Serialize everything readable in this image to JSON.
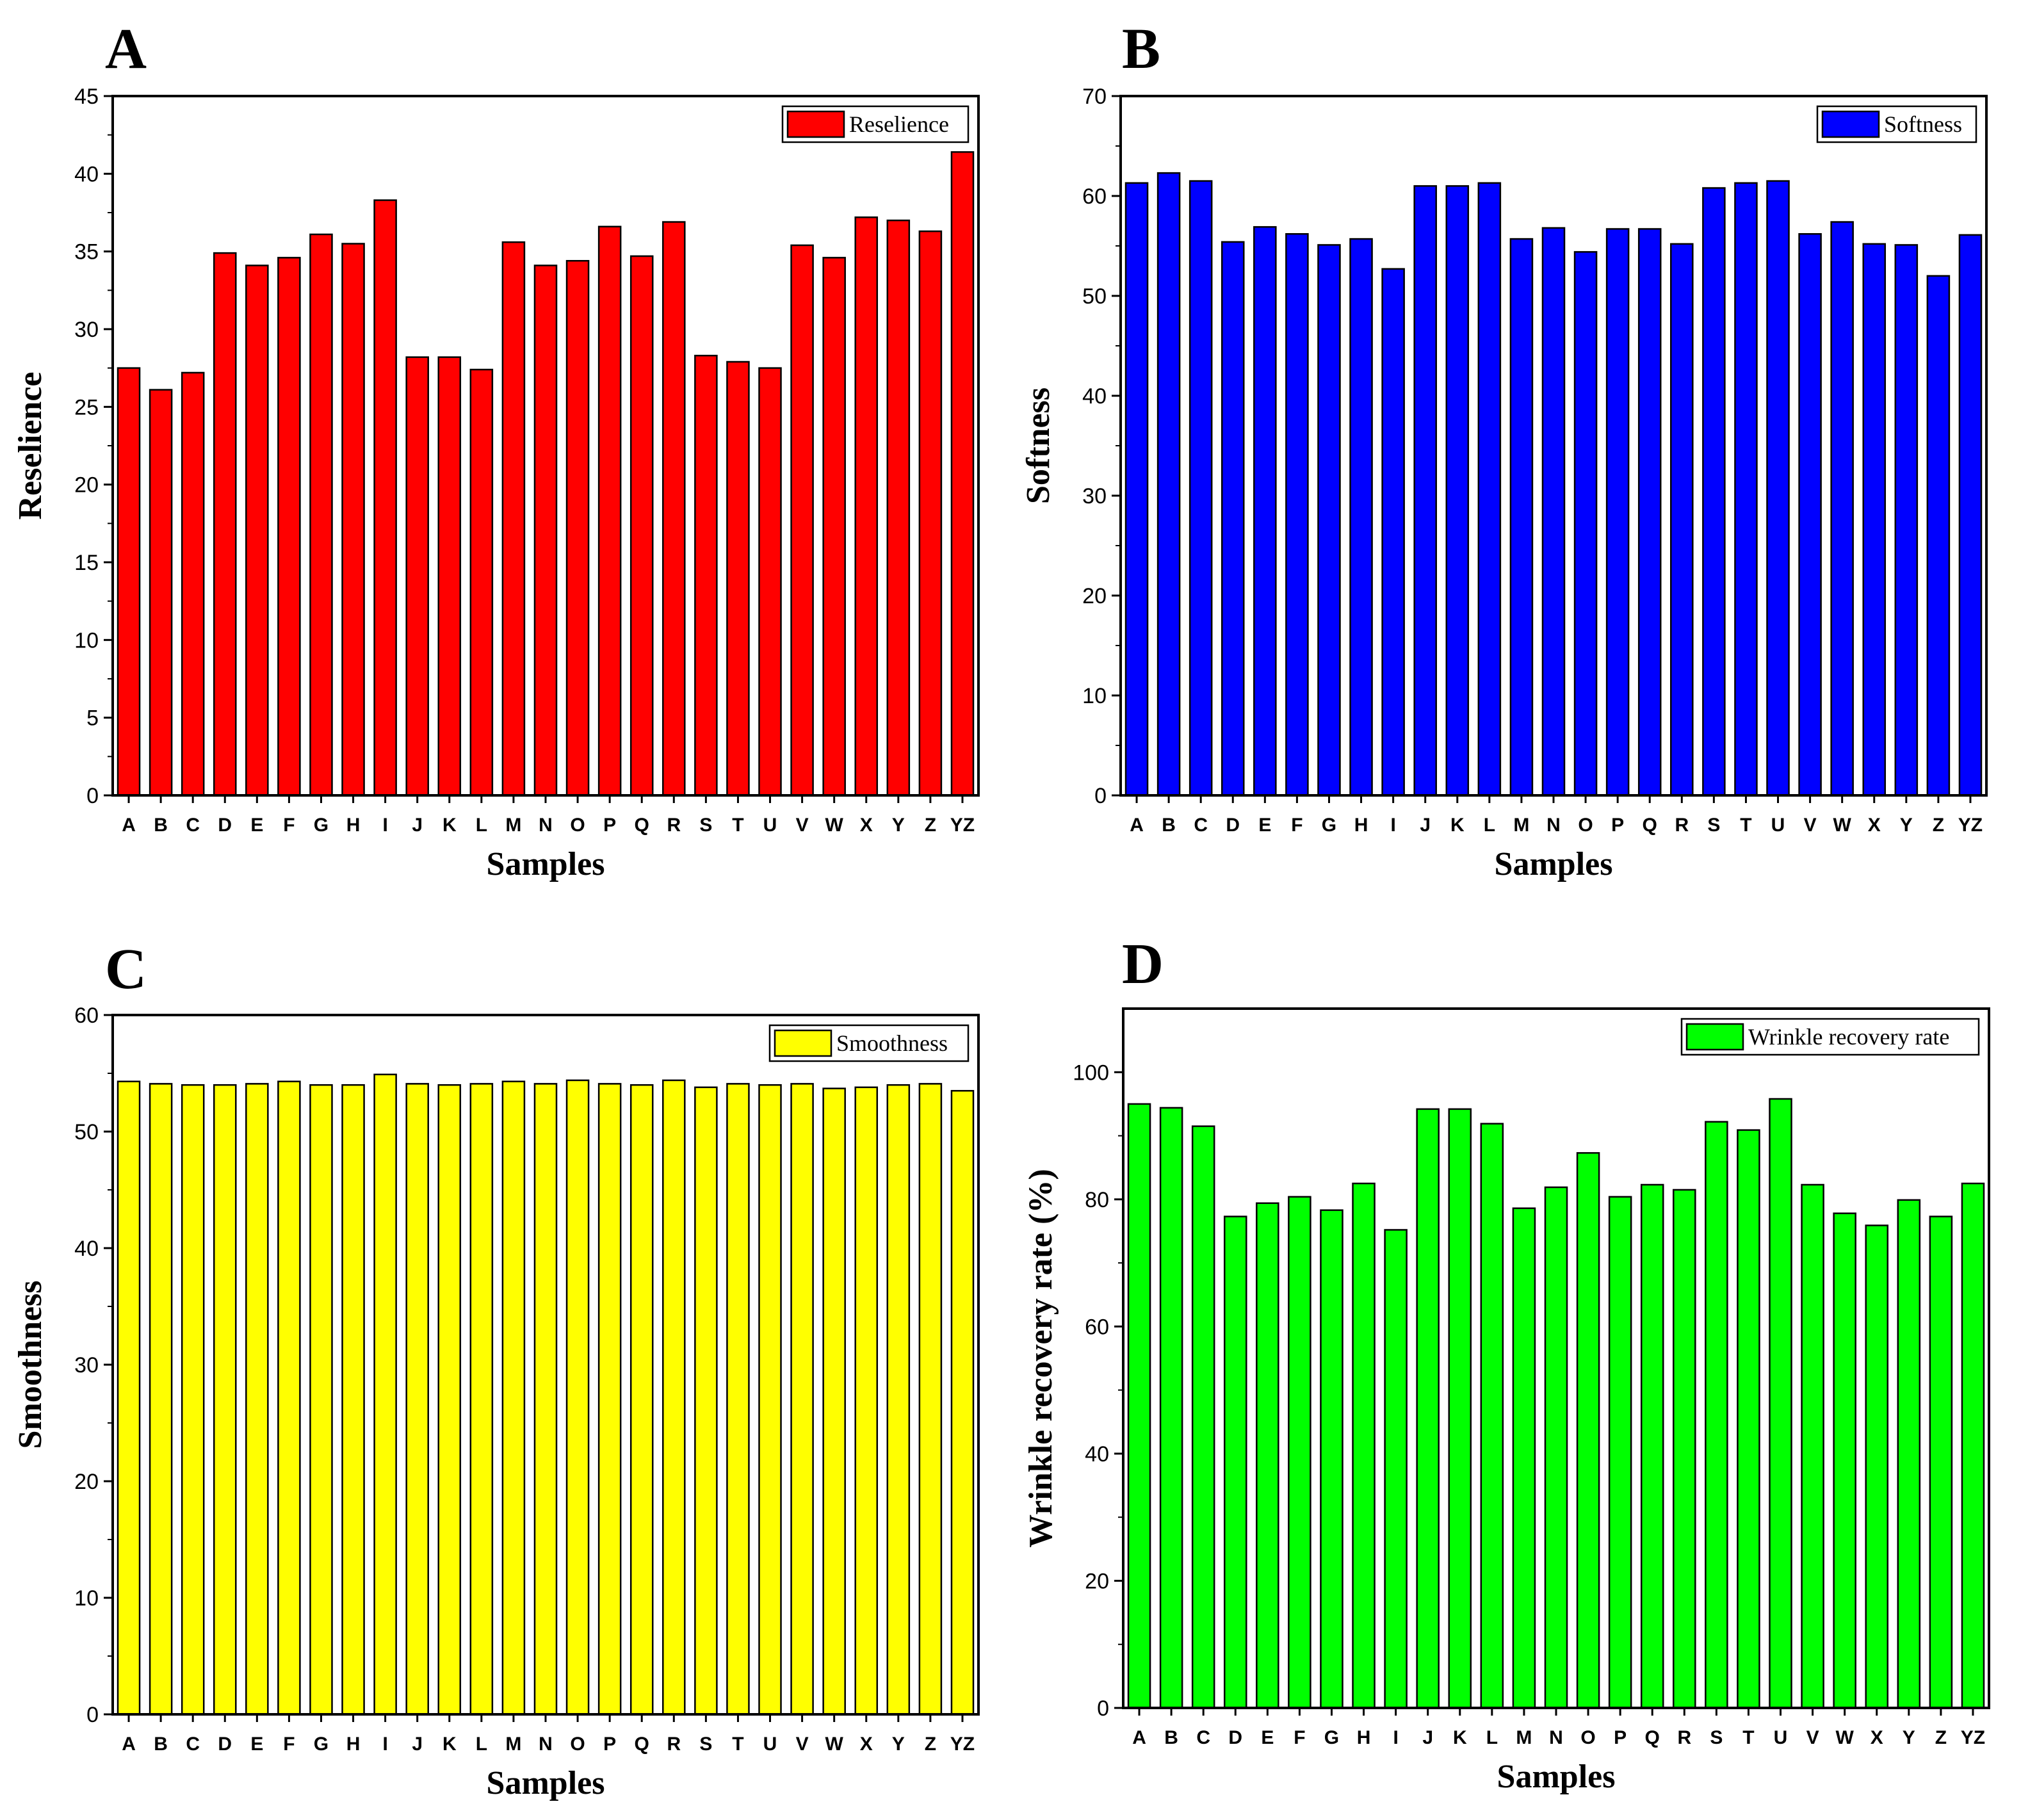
{
  "chart_data": [
    {
      "id": "A",
      "type": "bar",
      "panel_label": "A",
      "categories": [
        "A",
        "B",
        "C",
        "D",
        "E",
        "F",
        "G",
        "H",
        "I",
        "J",
        "K",
        "L",
        "M",
        "N",
        "O",
        "P",
        "Q",
        "R",
        "S",
        "T",
        "U",
        "V",
        "W",
        "X",
        "Y",
        "Z",
        "YZ"
      ],
      "values": [
        27.5,
        26.1,
        27.2,
        34.9,
        34.1,
        34.6,
        36.1,
        35.5,
        38.3,
        28.2,
        28.2,
        27.4,
        35.6,
        34.1,
        34.4,
        36.6,
        34.7,
        36.9,
        28.3,
        27.9,
        27.5,
        35.4,
        34.6,
        37.2,
        37.0,
        36.3,
        41.4
      ],
      "series_name": "Reselience",
      "color": "#ff0000",
      "xlabel": "Samples",
      "ylabel": "Reselience",
      "ylim": [
        0,
        45
      ],
      "yticks": [
        0,
        5,
        10,
        15,
        20,
        25,
        30,
        35,
        40,
        45
      ],
      "legend_position": "top-right",
      "grid": false
    },
    {
      "id": "B",
      "type": "bar",
      "panel_label": "B",
      "categories": [
        "A",
        "B",
        "C",
        "D",
        "E",
        "F",
        "G",
        "H",
        "I",
        "J",
        "K",
        "L",
        "M",
        "N",
        "O",
        "P",
        "Q",
        "R",
        "S",
        "T",
        "U",
        "V",
        "W",
        "X",
        "Y",
        "Z",
        "YZ"
      ],
      "values": [
        61.3,
        62.3,
        61.5,
        55.4,
        56.9,
        56.2,
        55.1,
        55.7,
        52.7,
        61.0,
        61.0,
        61.3,
        55.7,
        56.8,
        54.4,
        56.7,
        56.7,
        55.2,
        60.8,
        61.3,
        61.5,
        56.2,
        57.4,
        55.2,
        55.1,
        52.0,
        56.1
      ],
      "series_name": "Softness",
      "color": "#0000ff",
      "xlabel": "Samples",
      "ylabel": "Softness",
      "ylim": [
        0,
        70
      ],
      "yticks": [
        0,
        10,
        20,
        30,
        40,
        50,
        60,
        70
      ],
      "legend_position": "top-right",
      "grid": false
    },
    {
      "id": "C",
      "type": "bar",
      "panel_label": "C",
      "categories": [
        "A",
        "B",
        "C",
        "D",
        "E",
        "F",
        "G",
        "H",
        "I",
        "J",
        "K",
        "L",
        "M",
        "N",
        "O",
        "P",
        "Q",
        "R",
        "S",
        "T",
        "U",
        "V",
        "W",
        "X",
        "Y",
        "Z",
        "YZ"
      ],
      "values": [
        54.3,
        54.1,
        54.0,
        54.0,
        54.1,
        54.3,
        54.0,
        54.0,
        54.9,
        54.1,
        54.0,
        54.1,
        54.3,
        54.1,
        54.4,
        54.1,
        54.0,
        54.4,
        53.8,
        54.1,
        54.0,
        54.1,
        53.7,
        53.8,
        54.0,
        54.1,
        53.5
      ],
      "series_name": "Smoothness",
      "color": "#ffff00",
      "xlabel": "Samples",
      "ylabel": "Smoothness",
      "ylim": [
        0,
        60
      ],
      "yticks": [
        0,
        10,
        20,
        30,
        40,
        50,
        60
      ],
      "legend_position": "top-right",
      "grid": false
    },
    {
      "id": "D",
      "type": "bar",
      "panel_label": "D",
      "categories": [
        "A",
        "B",
        "C",
        "D",
        "E",
        "F",
        "G",
        "H",
        "I",
        "J",
        "K",
        "L",
        "M",
        "N",
        "O",
        "P",
        "Q",
        "R",
        "S",
        "T",
        "U",
        "V",
        "W",
        "X",
        "Y",
        "Z",
        "YZ"
      ],
      "values": [
        95.0,
        94.4,
        91.5,
        77.3,
        79.4,
        80.4,
        78.3,
        82.5,
        75.2,
        94.2,
        94.2,
        91.9,
        78.6,
        81.9,
        87.3,
        80.4,
        82.3,
        81.5,
        92.2,
        90.9,
        95.8,
        82.3,
        77.8,
        75.9,
        79.9,
        77.3,
        82.5
      ],
      "series_name": "Wrinkle recovery rate",
      "color": "#00ff00",
      "xlabel": "Samples",
      "ylabel": "Wrinkle recovery rate (%)",
      "ylim": [
        0,
        110
      ],
      "yticks": [
        0,
        20,
        40,
        60,
        80,
        100
      ],
      "legend_position": "top-right",
      "grid": false
    }
  ]
}
